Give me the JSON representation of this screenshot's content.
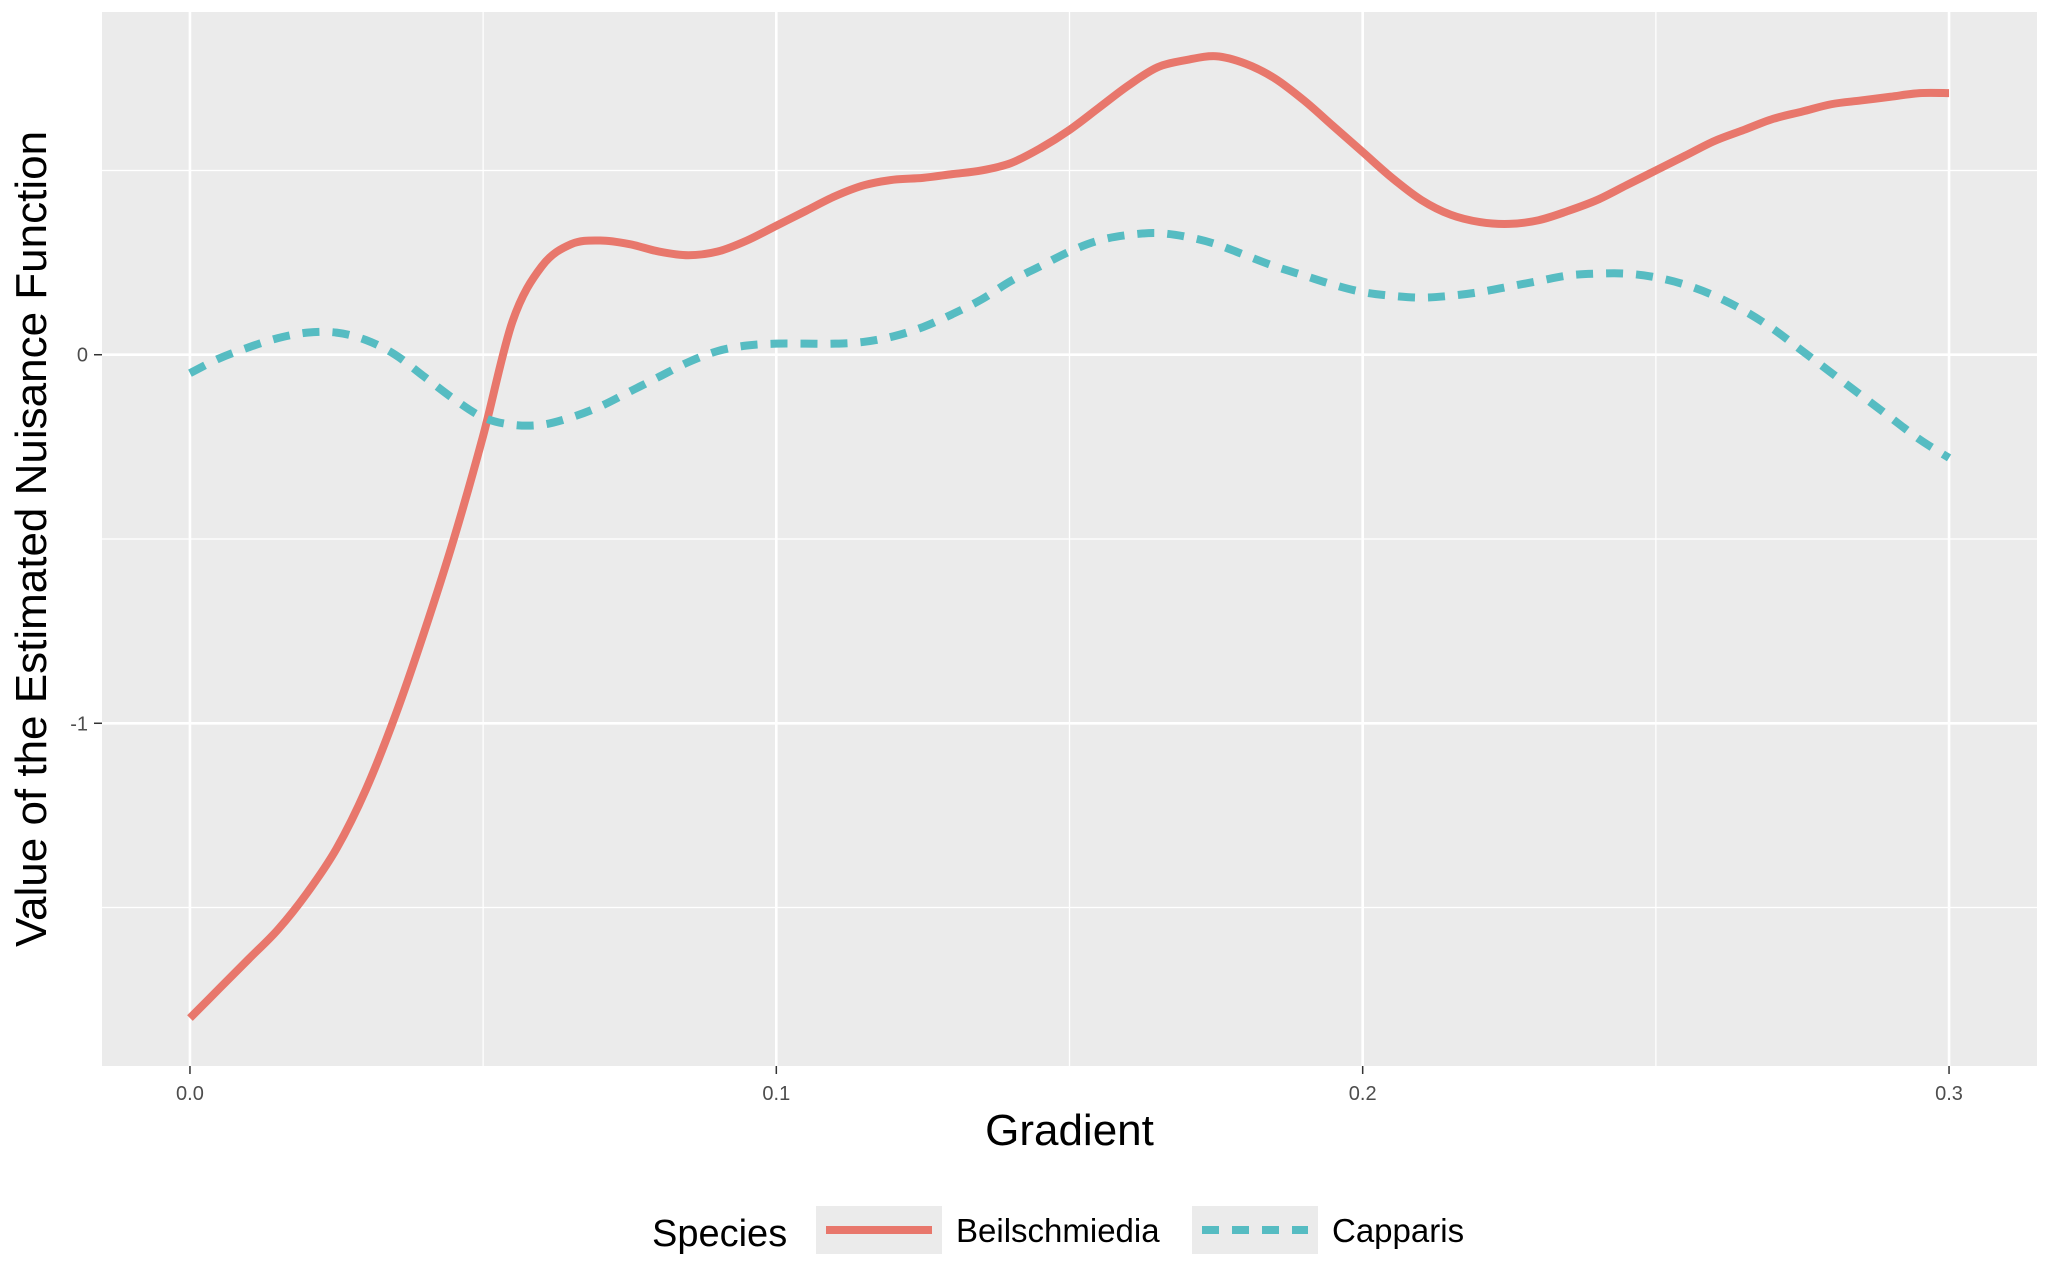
{
  "chart_data": {
    "type": "line",
    "title": "",
    "xlabel": "Gradient",
    "ylabel": "Value of the Estimated Nuisance Function",
    "xlim": [
      -0.015,
      0.315
    ],
    "ylim": [
      -1.93,
      0.93
    ],
    "x_ticks": [
      0.0,
      0.1,
      0.2,
      0.3
    ],
    "x_tick_labels": [
      "0.0",
      "0.1",
      "0.2",
      "0.3"
    ],
    "x_minor": [
      0.05,
      0.15,
      0.25
    ],
    "y_ticks": [
      -1,
      0
    ],
    "y_tick_labels": [
      "-1",
      "0"
    ],
    "y_minor": [
      -1.5,
      -0.5,
      0.5
    ],
    "grid": true,
    "background": "#ebebeb",
    "legend": {
      "title": "Species",
      "position": "bottom"
    },
    "series": [
      {
        "name": "Beilschmiedia",
        "color": "#e8776c",
        "dash": "solid",
        "points": [
          [
            0.0,
            -1.8
          ],
          [
            0.005,
            -1.72
          ],
          [
            0.01,
            -1.64
          ],
          [
            0.015,
            -1.56
          ],
          [
            0.02,
            -1.46
          ],
          [
            0.025,
            -1.34
          ],
          [
            0.03,
            -1.18
          ],
          [
            0.035,
            -0.98
          ],
          [
            0.04,
            -0.75
          ],
          [
            0.045,
            -0.5
          ],
          [
            0.05,
            -0.22
          ],
          [
            0.055,
            0.09
          ],
          [
            0.06,
            0.24
          ],
          [
            0.065,
            0.3
          ],
          [
            0.07,
            0.31
          ],
          [
            0.075,
            0.3
          ],
          [
            0.08,
            0.28
          ],
          [
            0.085,
            0.27
          ],
          [
            0.09,
            0.28
          ],
          [
            0.095,
            0.31
          ],
          [
            0.1,
            0.35
          ],
          [
            0.105,
            0.39
          ],
          [
            0.11,
            0.43
          ],
          [
            0.115,
            0.46
          ],
          [
            0.12,
            0.475
          ],
          [
            0.125,
            0.48
          ],
          [
            0.13,
            0.49
          ],
          [
            0.135,
            0.5
          ],
          [
            0.14,
            0.52
          ],
          [
            0.145,
            0.56
          ],
          [
            0.15,
            0.61
          ],
          [
            0.155,
            0.67
          ],
          [
            0.16,
            0.73
          ],
          [
            0.165,
            0.78
          ],
          [
            0.17,
            0.8
          ],
          [
            0.175,
            0.81
          ],
          [
            0.18,
            0.79
          ],
          [
            0.185,
            0.75
          ],
          [
            0.19,
            0.69
          ],
          [
            0.195,
            0.62
          ],
          [
            0.2,
            0.55
          ],
          [
            0.205,
            0.48
          ],
          [
            0.21,
            0.42
          ],
          [
            0.215,
            0.38
          ],
          [
            0.22,
            0.36
          ],
          [
            0.225,
            0.355
          ],
          [
            0.23,
            0.365
          ],
          [
            0.235,
            0.39
          ],
          [
            0.24,
            0.42
          ],
          [
            0.245,
            0.46
          ],
          [
            0.25,
            0.5
          ],
          [
            0.255,
            0.54
          ],
          [
            0.26,
            0.58
          ],
          [
            0.265,
            0.61
          ],
          [
            0.27,
            0.64
          ],
          [
            0.275,
            0.66
          ],
          [
            0.28,
            0.68
          ],
          [
            0.285,
            0.69
          ],
          [
            0.29,
            0.7
          ],
          [
            0.295,
            0.71
          ],
          [
            0.3,
            0.71
          ]
        ]
      },
      {
        "name": "Capparis",
        "color": "#56bcc2",
        "dash": "dashed",
        "points": [
          [
            0.0,
            -0.05
          ],
          [
            0.005,
            -0.01
          ],
          [
            0.01,
            0.02
          ],
          [
            0.015,
            0.045
          ],
          [
            0.02,
            0.06
          ],
          [
            0.025,
            0.06
          ],
          [
            0.03,
            0.04
          ],
          [
            0.035,
            0.0
          ],
          [
            0.04,
            -0.06
          ],
          [
            0.045,
            -0.12
          ],
          [
            0.05,
            -0.17
          ],
          [
            0.055,
            -0.19
          ],
          [
            0.06,
            -0.19
          ],
          [
            0.065,
            -0.17
          ],
          [
            0.07,
            -0.14
          ],
          [
            0.075,
            -0.1
          ],
          [
            0.08,
            -0.06
          ],
          [
            0.085,
            -0.02
          ],
          [
            0.09,
            0.01
          ],
          [
            0.095,
            0.025
          ],
          [
            0.1,
            0.03
          ],
          [
            0.105,
            0.03
          ],
          [
            0.11,
            0.03
          ],
          [
            0.115,
            0.035
          ],
          [
            0.12,
            0.05
          ],
          [
            0.125,
            0.075
          ],
          [
            0.13,
            0.11
          ],
          [
            0.135,
            0.15
          ],
          [
            0.14,
            0.2
          ],
          [
            0.145,
            0.24
          ],
          [
            0.15,
            0.28
          ],
          [
            0.155,
            0.31
          ],
          [
            0.16,
            0.325
          ],
          [
            0.165,
            0.33
          ],
          [
            0.17,
            0.32
          ],
          [
            0.175,
            0.3
          ],
          [
            0.18,
            0.27
          ],
          [
            0.185,
            0.24
          ],
          [
            0.19,
            0.215
          ],
          [
            0.195,
            0.19
          ],
          [
            0.2,
            0.17
          ],
          [
            0.205,
            0.16
          ],
          [
            0.21,
            0.155
          ],
          [
            0.215,
            0.16
          ],
          [
            0.22,
            0.17
          ],
          [
            0.225,
            0.185
          ],
          [
            0.23,
            0.2
          ],
          [
            0.235,
            0.215
          ],
          [
            0.24,
            0.22
          ],
          [
            0.245,
            0.22
          ],
          [
            0.25,
            0.21
          ],
          [
            0.255,
            0.19
          ],
          [
            0.26,
            0.16
          ],
          [
            0.265,
            0.12
          ],
          [
            0.27,
            0.07
          ],
          [
            0.275,
            0.01
          ],
          [
            0.28,
            -0.05
          ],
          [
            0.285,
            -0.11
          ],
          [
            0.29,
            -0.17
          ],
          [
            0.295,
            -0.23
          ],
          [
            0.3,
            -0.28
          ]
        ]
      }
    ]
  }
}
